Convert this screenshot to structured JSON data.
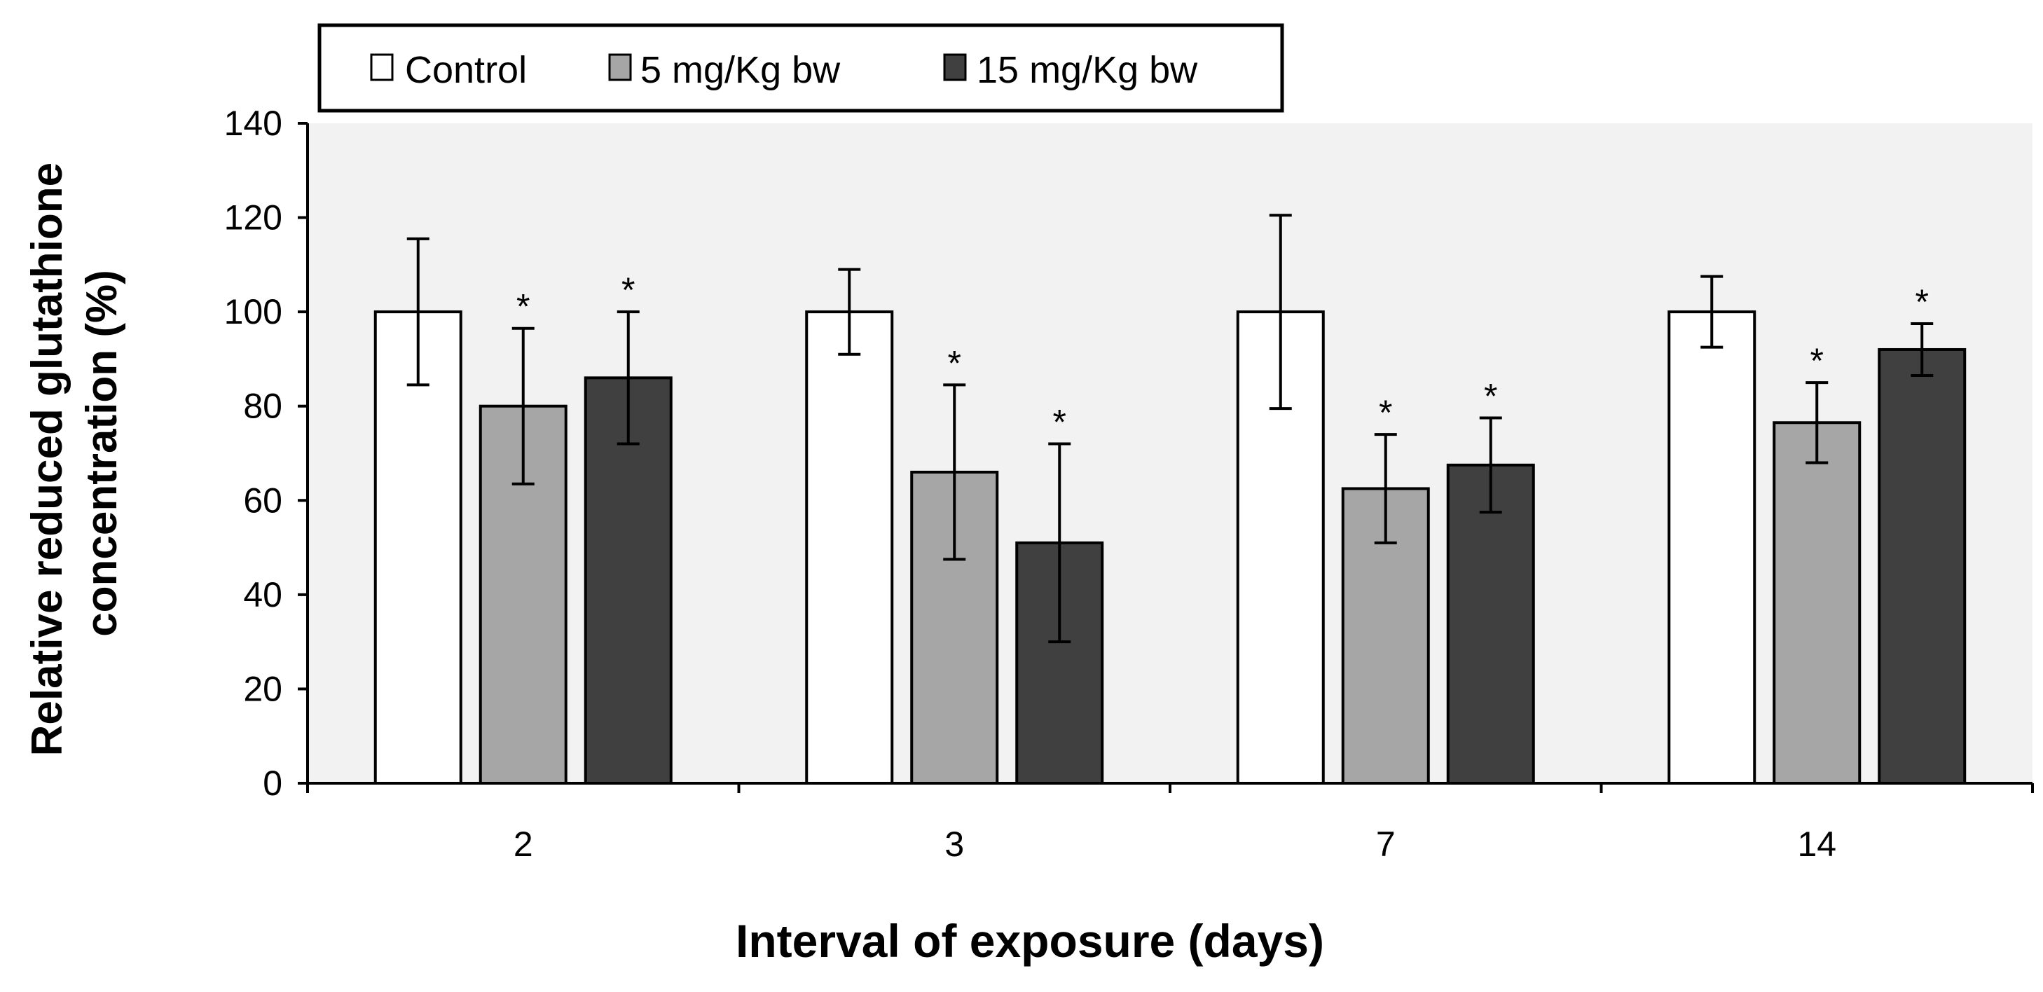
{
  "chart_data": {
    "type": "bar",
    "xlabel": "Interval of exposure (days)",
    "ylabel": [
      "Relative reduced glutathione",
      "concentration (%)"
    ],
    "categories": [
      "2",
      "3",
      "7",
      "14"
    ],
    "ylim": [
      0,
      140
    ],
    "yticks": [
      0,
      20,
      40,
      60,
      80,
      100,
      120,
      140
    ],
    "grid": false,
    "legend_position": "top-left",
    "plot_background": "#f2f2f2",
    "significance_marker": "*",
    "series": [
      {
        "name": "Control",
        "color": "#ffffff",
        "values": [
          100,
          100,
          100,
          100
        ],
        "error": [
          15.5,
          9,
          20.5,
          7.5
        ],
        "significant": [
          false,
          false,
          false,
          false
        ]
      },
      {
        "name": "5 mg/Kg bw",
        "color": "#a6a6a6",
        "values": [
          80,
          66,
          62.5,
          76.5
        ],
        "error": [
          16.5,
          18.5,
          11.5,
          8.5
        ],
        "significant": [
          true,
          true,
          true,
          true
        ]
      },
      {
        "name": "15 mg/Kg bw",
        "color": "#404040",
        "values": [
          86,
          51,
          67.5,
          92
        ],
        "error": [
          14,
          21,
          10,
          5.5
        ],
        "significant": [
          true,
          true,
          true,
          true
        ]
      }
    ]
  }
}
